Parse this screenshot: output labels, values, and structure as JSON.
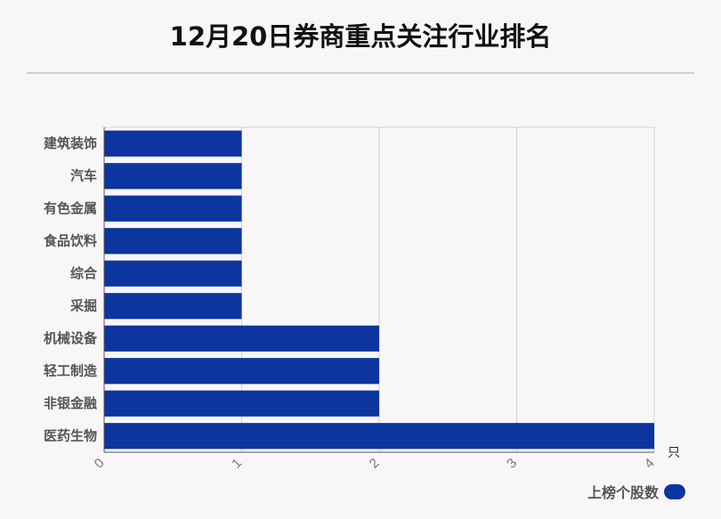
{
  "chart_data": {
    "type": "bar",
    "orientation": "horizontal",
    "title": "12月20日券商重点关注行业排名",
    "categories": [
      "建筑装饰",
      "汽车",
      "有色金属",
      "食品饮料",
      "综合",
      "采掘",
      "机械设备",
      "轻工制造",
      "非银金融",
      "医药生物"
    ],
    "series": [
      {
        "name": "上榜个股数",
        "values": [
          1,
          1,
          1,
          1,
          1,
          1,
          2,
          2,
          2,
          4
        ]
      }
    ],
    "xlim": [
      0,
      4
    ],
    "x_ticks": [
      "0",
      "1",
      "2",
      "3",
      "4"
    ],
    "x_unit": "只",
    "grid": true,
    "legend_position": "bottom-right",
    "bar_color": "#0c35a0"
  }
}
